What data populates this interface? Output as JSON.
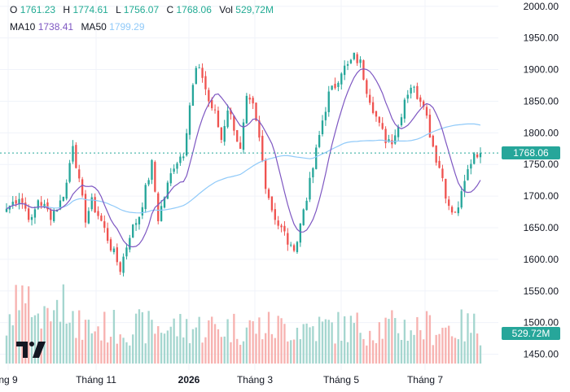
{
  "legend": {
    "ohlc": [
      {
        "label": "O",
        "value": "1761.23"
      },
      {
        "label": "H",
        "value": "1774.61"
      },
      {
        "label": "L",
        "value": "1756.07"
      },
      {
        "label": "C",
        "value": "1768.06"
      },
      {
        "label": "Vol",
        "value": "529,72M"
      }
    ],
    "ma": [
      {
        "label": "MA10",
        "value": "1738.41",
        "color": "#7e57c2"
      },
      {
        "label": "MA50",
        "value": "1799.29",
        "color": "#90caf9"
      }
    ]
  },
  "price_tag": {
    "text": "1768.06",
    "color": "#26a69a"
  },
  "volume_tag": {
    "text": "529.72M",
    "color": "#26a69a"
  },
  "colors": {
    "up": "#26a69a",
    "down": "#ef5350",
    "up_volume": "#a5d6cf",
    "down_volume": "#f7b2b0",
    "ma10": "#7e57c2",
    "ma50": "#90caf9"
  },
  "logo_icon": "tradingview-logo-icon",
  "chart_data": {
    "type": "candlestick",
    "title": "",
    "y_axis": {
      "min": 1425,
      "max": 2010,
      "ticks": [
        1450,
        1500,
        1550,
        1600,
        1650,
        1700,
        1750,
        1800,
        1850,
        1900,
        1950,
        2000
      ],
      "position": "right"
    },
    "x_axis": {
      "labels": [
        "ng 9",
        "Tháng 11",
        "2026",
        "Tháng 3",
        "Tháng 5",
        "Tháng 7"
      ],
      "bold": [
        false,
        false,
        true,
        false,
        false,
        false
      ]
    },
    "grid": true,
    "last_price_line": 1768.06,
    "series": [
      {
        "name": "MA10",
        "period": 10
      },
      {
        "name": "MA50",
        "period": 50
      }
    ],
    "close_path": [
      [
        0,
        1680
      ],
      [
        4,
        1700
      ],
      [
        8,
        1660
      ],
      [
        10,
        1695
      ],
      [
        14,
        1670
      ],
      [
        17,
        1690
      ],
      [
        19,
        1720
      ],
      [
        21,
        1785
      ],
      [
        23,
        1720
      ],
      [
        25,
        1665
      ],
      [
        27,
        1690
      ],
      [
        30,
        1660
      ],
      [
        33,
        1620
      ],
      [
        36,
        1585
      ],
      [
        39,
        1640
      ],
      [
        42,
        1670
      ],
      [
        44,
        1710
      ],
      [
        46,
        1750
      ],
      [
        48,
        1665
      ],
      [
        50,
        1700
      ],
      [
        53,
        1750
      ],
      [
        56,
        1770
      ],
      [
        58,
        1845
      ],
      [
        60,
        1900
      ],
      [
        62,
        1890
      ],
      [
        64,
        1850
      ],
      [
        66,
        1830
      ],
      [
        68,
        1790
      ],
      [
        70,
        1840
      ],
      [
        72,
        1810
      ],
      [
        74,
        1770
      ],
      [
        76,
        1850
      ],
      [
        78,
        1840
      ],
      [
        80,
        1790
      ],
      [
        82,
        1720
      ],
      [
        84,
        1680
      ],
      [
        86,
        1655
      ],
      [
        88,
        1640
      ],
      [
        90,
        1615
      ],
      [
        92,
        1630
      ],
      [
        94,
        1680
      ],
      [
        96,
        1720
      ],
      [
        98,
        1770
      ],
      [
        100,
        1820
      ],
      [
        102,
        1860
      ],
      [
        104,
        1875
      ],
      [
        106,
        1900
      ],
      [
        108,
        1905
      ],
      [
        110,
        1920
      ],
      [
        112,
        1910
      ],
      [
        114,
        1870
      ],
      [
        116,
        1840
      ],
      [
        118,
        1810
      ],
      [
        120,
        1790
      ],
      [
        122,
        1790
      ],
      [
        124,
        1810
      ],
      [
        126,
        1855
      ],
      [
        128,
        1875
      ],
      [
        130,
        1860
      ],
      [
        132,
        1850
      ],
      [
        134,
        1800
      ],
      [
        136,
        1760
      ],
      [
        138,
        1730
      ],
      [
        140,
        1680
      ],
      [
        142,
        1670
      ],
      [
        144,
        1700
      ],
      [
        146,
        1740
      ],
      [
        148,
        1770
      ],
      [
        150,
        1768.06
      ]
    ],
    "volume_range": [
      2,
      22,
      55
    ]
  }
}
